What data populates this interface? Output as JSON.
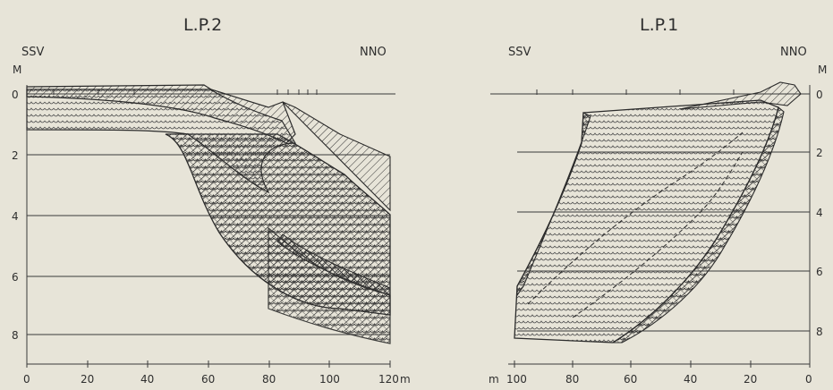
{
  "profiles": [
    {
      "title": "L.P.2",
      "left_dir": "SSV",
      "right_dir": "NNO",
      "depth_unit": "M",
      "x_unit": "m",
      "depth_ticks": [
        "0",
        "2",
        "4",
        "6",
        "8"
      ],
      "x_ticks": [
        "0",
        "20",
        "40",
        "60",
        "80",
        "100",
        "120"
      ]
    },
    {
      "title": "L.P.1",
      "left_dir": "SSV",
      "right_dir": "NNO",
      "depth_unit": "M",
      "x_unit": "m",
      "depth_ticks": [
        "0",
        "2",
        "4",
        "6",
        "8"
      ],
      "x_ticks": [
        "100",
        "80",
        "60",
        "40",
        "20",
        "0"
      ]
    }
  ],
  "colors": {
    "background": "#e7e4d8",
    "line": "#2b2b2b"
  }
}
